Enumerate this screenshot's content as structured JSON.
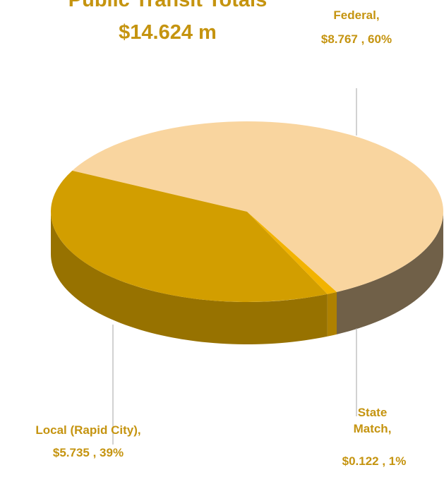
{
  "chart_data": {
    "type": "pie3d",
    "title": "Public Transit Totals",
    "subtitle": "$14.624 m",
    "categories": [
      "Federal,",
      "State Match,",
      "Local (Rapid City),"
    ],
    "values": [
      8.767,
      0.122,
      5.735
    ],
    "value_labels": [
      "$8.767 , 60%",
      "$0.122 , 1%",
      "$5.735 , 39%"
    ],
    "colors": [
      "#f9d59f",
      "#f2b300",
      "#d29e00"
    ]
  }
}
